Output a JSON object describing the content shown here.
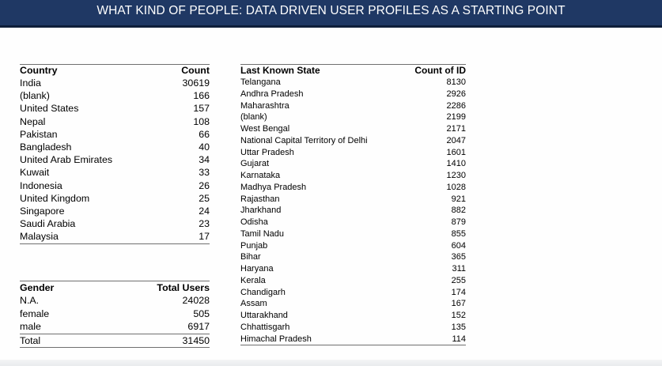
{
  "header": {
    "title": "WHAT KIND OF PEOPLE: DATA DRIVEN USER PROFILES AS A STARTING POINT"
  },
  "country_table": {
    "headers": [
      "Country",
      "Count"
    ],
    "rows": [
      [
        "India",
        "30619"
      ],
      [
        "(blank)",
        "166"
      ],
      [
        "United States",
        "157"
      ],
      [
        "Nepal",
        "108"
      ],
      [
        "Pakistan",
        "66"
      ],
      [
        "Bangladesh",
        "40"
      ],
      [
        "United Arab Emirates",
        "34"
      ],
      [
        "Kuwait",
        "33"
      ],
      [
        "Indonesia",
        "26"
      ],
      [
        "United Kingdom",
        "25"
      ],
      [
        "Singapore",
        "24"
      ],
      [
        "Saudi Arabia",
        "23"
      ],
      [
        "Malaysia",
        "17"
      ]
    ]
  },
  "gender_table": {
    "headers": [
      "Gender",
      "Total Users"
    ],
    "rows": [
      [
        "N.A.",
        "24028"
      ],
      [
        "female",
        "505"
      ],
      [
        "male",
        "6917"
      ],
      [
        "Total",
        "31450"
      ]
    ]
  },
  "state_table": {
    "headers": [
      "Last Known State",
      "Count of ID"
    ],
    "rows": [
      [
        "Telangana",
        "8130"
      ],
      [
        "Andhra Pradesh",
        "2926"
      ],
      [
        "Maharashtra",
        "2286"
      ],
      [
        "(blank)",
        "2199"
      ],
      [
        "West Bengal",
        "2171"
      ],
      [
        "National Capital Territory of Delhi",
        "2047"
      ],
      [
        "Uttar Pradesh",
        "1601"
      ],
      [
        "Gujarat",
        "1410"
      ],
      [
        "Karnataka",
        "1230"
      ],
      [
        "Madhya Pradesh",
        "1028"
      ],
      [
        "Rajasthan",
        "921"
      ],
      [
        "Jharkhand",
        "882"
      ],
      [
        "Odisha",
        "879"
      ],
      [
        "Tamil Nadu",
        "855"
      ],
      [
        "Punjab",
        "604"
      ],
      [
        "Bihar",
        "365"
      ],
      [
        "Haryana",
        "311"
      ],
      [
        "Kerala",
        "255"
      ],
      [
        "Chandigarh",
        "174"
      ],
      [
        "Assam",
        "167"
      ],
      [
        "Uttarakhand",
        "152"
      ],
      [
        "Chhattisgarh",
        "135"
      ],
      [
        "Himachal Pradesh",
        "114"
      ]
    ]
  },
  "colors": {
    "title_bar": "#1f3864",
    "title_text": "#ffffff",
    "rule": "#6f6f6f"
  }
}
